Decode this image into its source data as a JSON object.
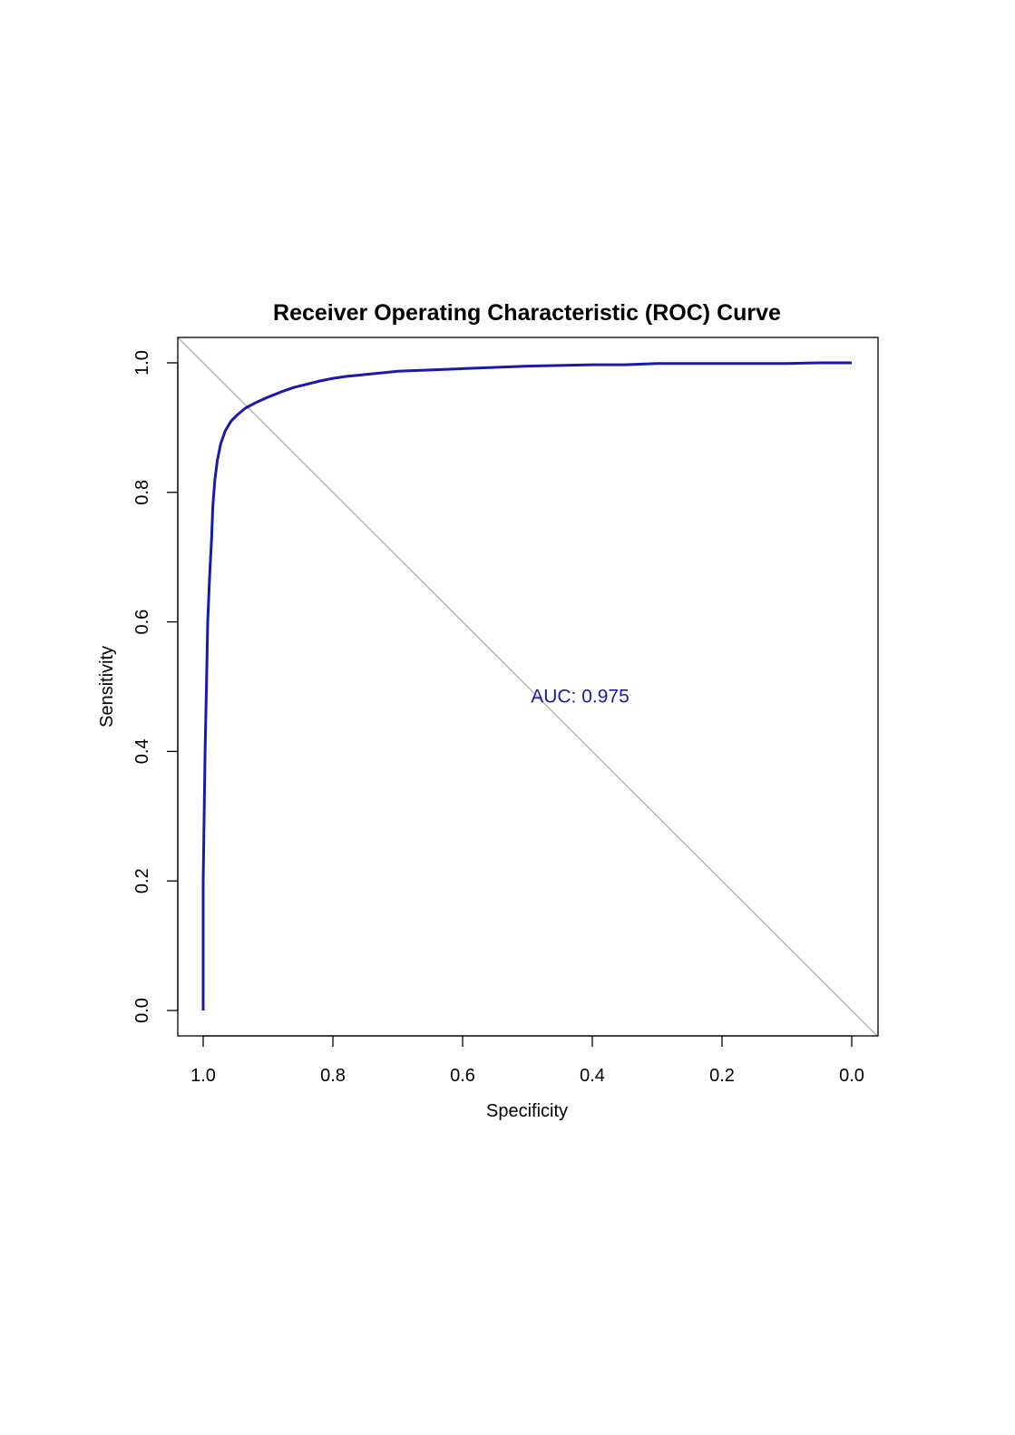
{
  "chart_data": {
    "type": "line",
    "title": "Receiver Operating Characteristic (ROC) Curve",
    "xlabel": "Specificity",
    "ylabel": "Sensitivity",
    "xlim": [
      1.0,
      0.0
    ],
    "ylim": [
      0.0,
      1.0
    ],
    "x_reversed": true,
    "grid": false,
    "legend": "none",
    "x_ticks": [
      "1.0",
      "0.8",
      "0.6",
      "0.4",
      "0.2",
      "0.0"
    ],
    "y_ticks": [
      "0.0",
      "0.2",
      "0.4",
      "0.6",
      "0.8",
      "1.0"
    ],
    "series": [
      {
        "color": "#1a1aa8",
        "x": [
          1.0,
          1.0,
          0.997,
          0.995,
          0.993,
          0.99,
          0.987,
          0.985,
          0.982,
          0.978,
          0.973,
          0.966,
          0.957,
          0.947,
          0.935,
          0.92,
          0.9,
          0.88,
          0.86,
          0.84,
          0.82,
          0.8,
          0.78,
          0.76,
          0.74,
          0.72,
          0.7,
          0.65,
          0.6,
          0.55,
          0.5,
          0.45,
          0.4,
          0.35,
          0.3,
          0.2,
          0.1,
          0.05,
          0.0
        ],
        "y": [
          0.0,
          0.2,
          0.4,
          0.5,
          0.6,
          0.67,
          0.73,
          0.78,
          0.82,
          0.85,
          0.875,
          0.895,
          0.91,
          0.92,
          0.93,
          0.938,
          0.947,
          0.955,
          0.962,
          0.967,
          0.972,
          0.976,
          0.979,
          0.981,
          0.983,
          0.985,
          0.987,
          0.989,
          0.991,
          0.993,
          0.995,
          0.996,
          0.997,
          0.997,
          0.999,
          0.999,
          0.999,
          1.0,
          1.0
        ]
      },
      {
        "color": "#b3b3b3",
        "x": [
          1.0,
          0.0
        ],
        "y": [
          0.0,
          1.0
        ]
      }
    ],
    "annotations": [
      {
        "text": "AUC: 0.975",
        "x": 0.5,
        "y": 0.487,
        "color": "#1a1aa8"
      }
    ]
  }
}
